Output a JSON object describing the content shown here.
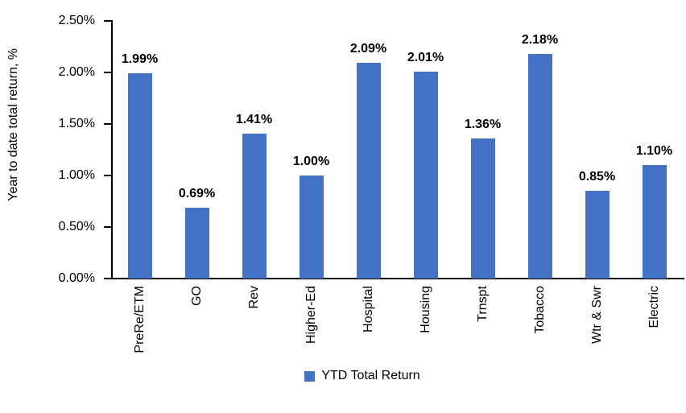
{
  "chart_data": {
    "type": "bar",
    "title": "",
    "xlabel": "",
    "ylabel": "Year to date total return, %",
    "categories": [
      "PreRe/ETM",
      "GO",
      "Rev",
      "Higher-Ed",
      "Hospital",
      "Housing",
      "Trnspt",
      "Tobacco",
      "Wtr & Swr",
      "Electric"
    ],
    "values": [
      1.99,
      0.69,
      1.41,
      1.0,
      2.09,
      2.01,
      1.36,
      2.18,
      0.85,
      1.1
    ],
    "data_labels": [
      "1.99%",
      "0.69%",
      "1.41%",
      "1.00%",
      "2.09%",
      "2.01%",
      "1.36%",
      "2.18%",
      "0.85%",
      "1.10%"
    ],
    "ylim": [
      0,
      2.5
    ],
    "ytick_values": [
      0,
      0.5,
      1.0,
      1.5,
      2.0,
      2.5
    ],
    "ytick_labels": [
      "0.00%",
      "0.50%",
      "1.00%",
      "1.50%",
      "2.00%",
      "2.50%"
    ],
    "grid": false,
    "bar_color": "#4472C4",
    "axis_color": "#000000",
    "legend": {
      "position": "bottom",
      "items": [
        {
          "label": "YTD Total Return",
          "color": "#4472C4"
        }
      ]
    }
  }
}
